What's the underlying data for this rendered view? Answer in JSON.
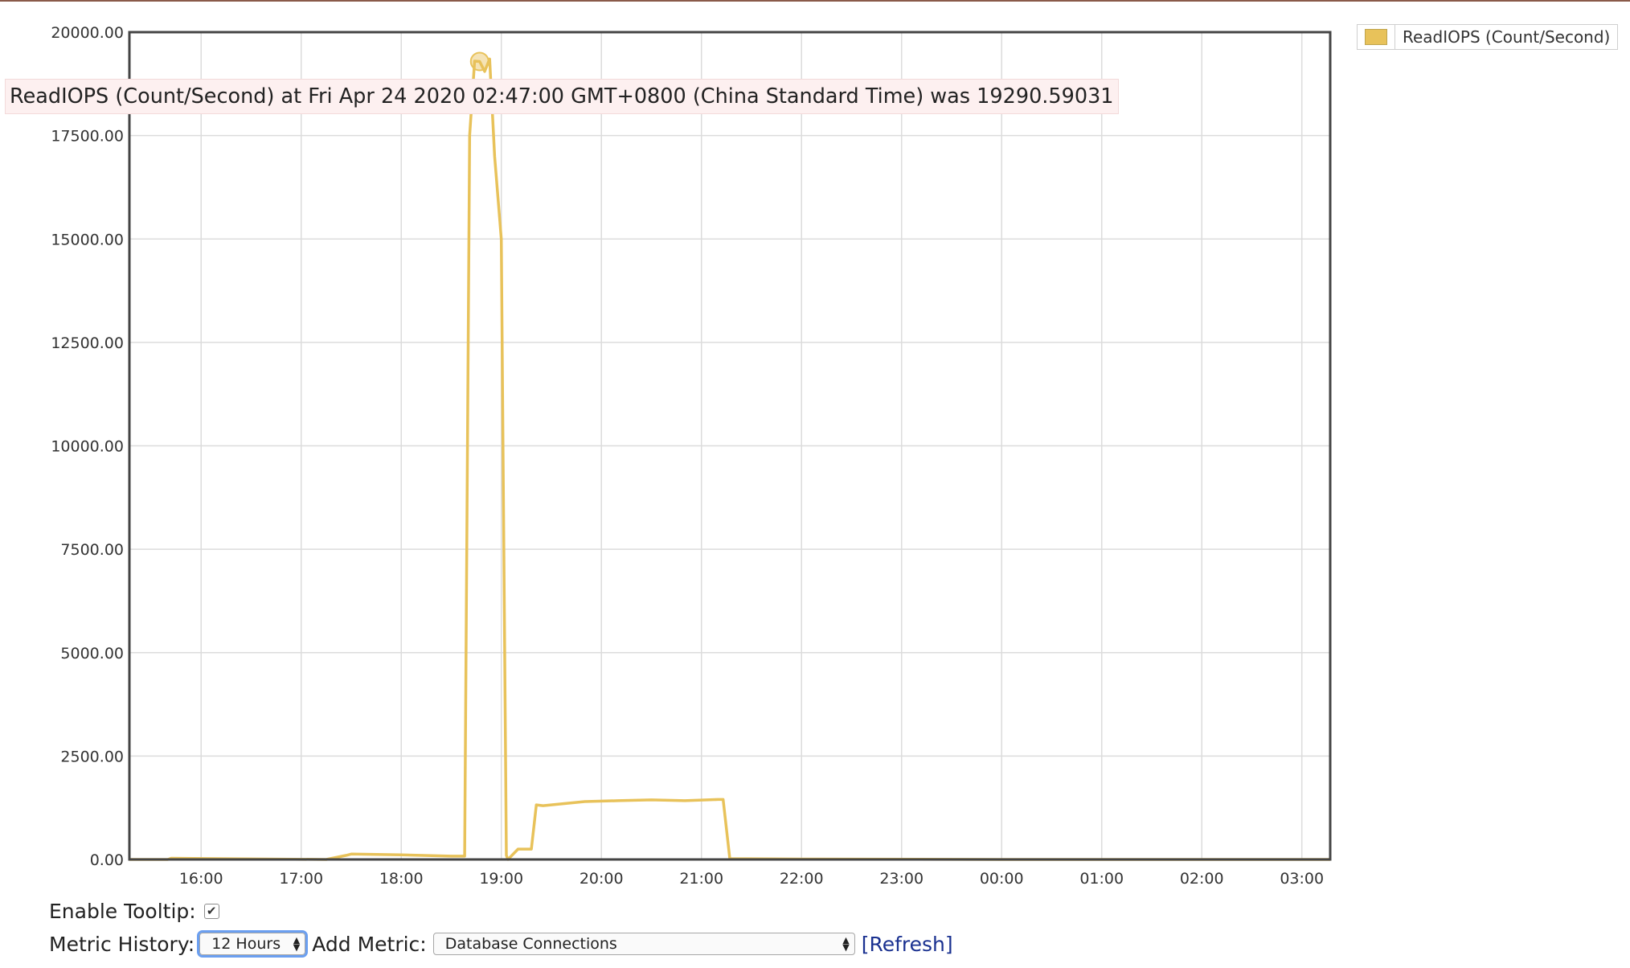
{
  "chart_data": {
    "type": "line",
    "title": "",
    "xlabel": "",
    "ylabel": "",
    "ylim": [
      0,
      20000
    ],
    "xlim": [
      "2020-04-23 15:17",
      "2020-04-24 03:17"
    ],
    "yticks": [
      "0.00",
      "2500.00",
      "5000.00",
      "7500.00",
      "10000.00",
      "12500.00",
      "15000.00",
      "17500.00",
      "20000.00"
    ],
    "xticks": [
      "16:00",
      "17:00",
      "18:00",
      "19:00",
      "20:00",
      "21:00",
      "22:00",
      "23:00",
      "00:00",
      "01:00",
      "02:00",
      "03:00"
    ],
    "grid": true,
    "legend_position": "top-right",
    "series": [
      {
        "name": "ReadIOPS (Count/Second)",
        "color": "#e8c25a",
        "x": [
          "2020-04-23 15:17",
          "2020-04-23 15:40",
          "2020-04-23 15:42",
          "2020-04-23 17:15",
          "2020-04-23 17:27",
          "2020-04-23 17:30",
          "2020-04-23 18:00",
          "2020-04-23 18:30",
          "2020-04-23 18:38",
          "2020-04-23 18:41",
          "2020-04-23 18:44",
          "2020-04-23 18:47",
          "2020-04-23 18:50",
          "2020-04-23 18:53",
          "2020-04-23 18:56",
          "2020-04-23 19:00",
          "2020-04-23 19:03",
          "2020-04-23 19:04",
          "2020-04-23 19:10",
          "2020-04-23 19:18",
          "2020-04-23 19:21",
          "2020-04-23 19:25",
          "2020-04-23 19:50",
          "2020-04-23 20:10",
          "2020-04-23 20:30",
          "2020-04-23 20:50",
          "2020-04-23 21:10",
          "2020-04-23 21:13",
          "2020-04-23 21:17",
          "2020-04-23 22:00",
          "2020-04-24 00:00",
          "2020-04-24 02:00",
          "2020-04-24 03:17"
        ],
        "y": [
          0,
          0,
          30,
          0,
          100,
          130,
          110,
          80,
          80,
          17500,
          19300,
          19290.59031,
          19050,
          19350,
          17000,
          15000,
          100,
          0,
          250,
          250,
          1320,
          1300,
          1400,
          1420,
          1440,
          1420,
          1450,
          1450,
          20,
          10,
          0,
          0,
          0
        ]
      }
    ]
  },
  "tooltip_text": "ReadIOPS (Count/Second) at Fri Apr 24 2020 02:47:00 GMT+0800 (China Standard Time) was 19290.59031",
  "highlight_point": {
    "x": "2020-04-23 18:47",
    "y": 19290.59031
  },
  "controls": {
    "enable_tooltip_label": "Enable Tooltip:",
    "enable_tooltip_checked": true,
    "metric_history_label": "Metric History:",
    "metric_history_value": "12 Hours",
    "add_metric_label": "Add Metric:",
    "add_metric_value": "Database Connections",
    "refresh_label": "[Refresh]"
  }
}
